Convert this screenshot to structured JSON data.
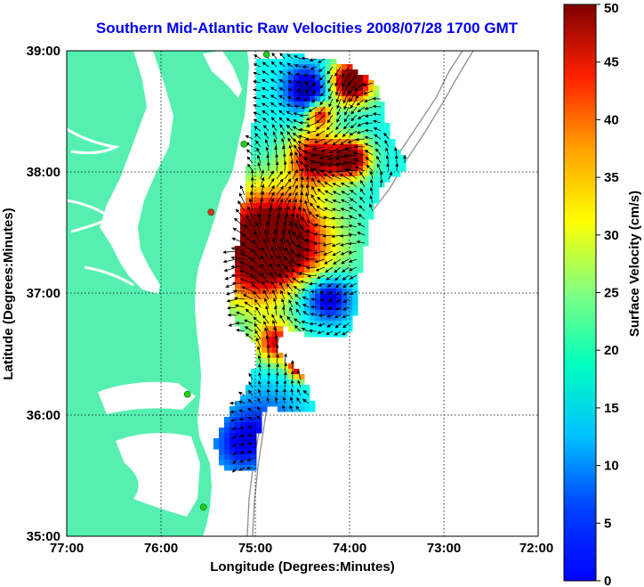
{
  "title": "Southern Mid-Atlantic Raw Velocities 2008/07/28 1700 GMT",
  "x_axis": {
    "label": "Longitude (Degrees:Minutes)",
    "ticks": [
      "77:00",
      "76:00",
      "75:00",
      "74:00",
      "73:00",
      "72:00"
    ]
  },
  "y_axis": {
    "label": "Latitude (Degrees:Minutes)",
    "ticks": [
      "39:00",
      "38:00",
      "37:00",
      "36:00",
      "35:00"
    ]
  },
  "colorbar": {
    "label": "Surface Velocity (cm/s)",
    "ticks": [
      "50",
      "45",
      "40",
      "35",
      "30",
      "25",
      "20",
      "15",
      "10",
      "5",
      "0"
    ],
    "range": [
      0,
      50
    ],
    "colormap": "jet"
  },
  "colors": {
    "land": "#55f0b0",
    "water": "#ffffff",
    "bathymetry": "#909090",
    "gridlines": "#000000",
    "title": "#0000ee",
    "station_active": "#22cc22",
    "station_inactive": "#e03020"
  },
  "extent": {
    "lon": [
      -77,
      -72
    ],
    "lat": [
      35,
      39
    ]
  },
  "stations": [
    {
      "lon": -74.88,
      "lat": 38.97,
      "status": "active"
    },
    {
      "lon": -75.12,
      "lat": 38.23,
      "status": "active"
    },
    {
      "lon": -75.47,
      "lat": 37.67,
      "status": "inactive"
    },
    {
      "lon": -75.72,
      "lat": 36.17,
      "status": "active"
    },
    {
      "lon": -75.55,
      "lat": 35.24,
      "status": "active"
    }
  ]
}
